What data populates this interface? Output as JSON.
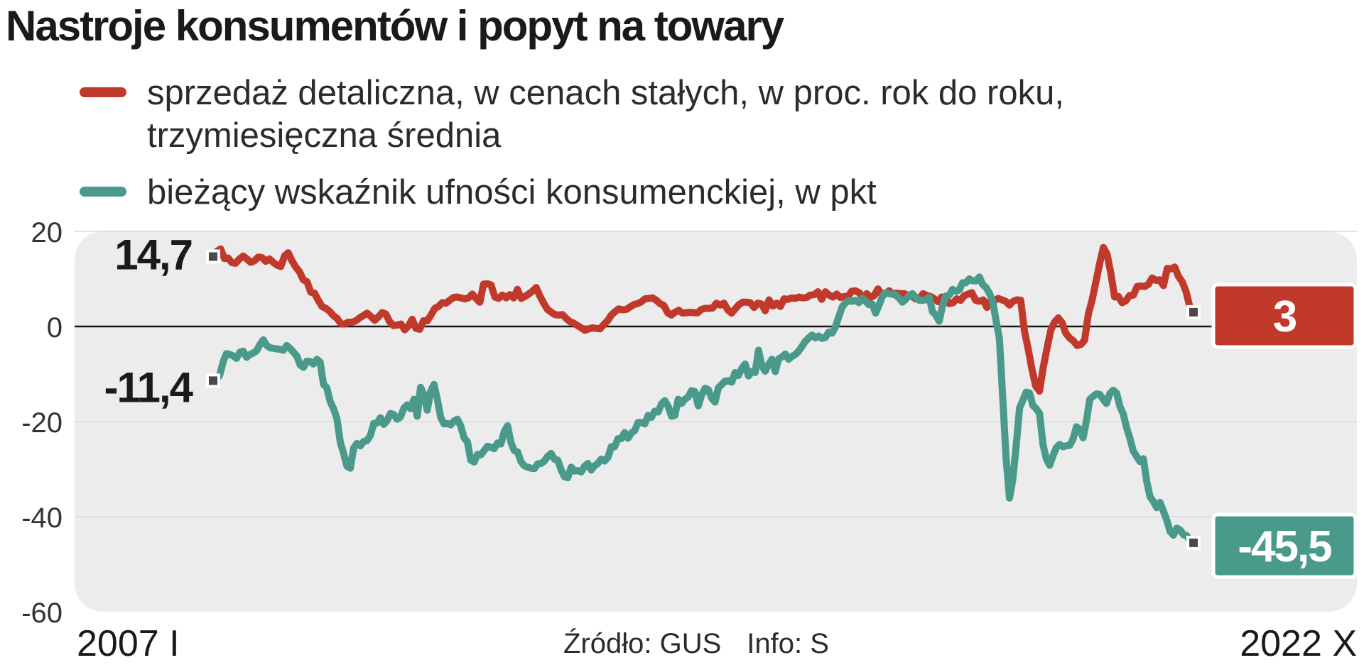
{
  "title": "Nastroje konsumentów i popyt na towary",
  "source": {
    "text": "Źródło: GUS",
    "info": "Info: S"
  },
  "colors": {
    "retail": "#c0392b",
    "confidence": "#4a9a8c",
    "plot_background": "#ececec",
    "text": "#1a1a1a"
  },
  "chart_data": {
    "type": "line",
    "title": "Nastroje konsumentów i popyt na towary",
    "xlabel": "",
    "ylabel": "",
    "x_start_label": "2007 I",
    "x_end_label": "2022 X",
    "ylim": [
      -60,
      20
    ],
    "yticks": [
      20,
      0,
      -20,
      -40,
      -60
    ],
    "grid": true,
    "legend_position": "top-left",
    "series": [
      {
        "id": "retail",
        "name": "sprzedaż detaliczna, w cenach stałych, w proc. rok do roku, trzymiesięczna średnia",
        "color": "#c0392b",
        "start_label": "14,7",
        "end_label": "3",
        "values": [
          14.7,
          15.8,
          16.3,
          14.3,
          14.4,
          13.4,
          13.3,
          14.2,
          14.8,
          14.2,
          13.5,
          13.8,
          14.6,
          14.5,
          13.7,
          14.2,
          13.5,
          12.9,
          12.6,
          14.8,
          15.5,
          13.8,
          12.5,
          11.5,
          9.8,
          9.4,
          7.2,
          7.0,
          5.5,
          4.2,
          3.8,
          3.2,
          2.3,
          1.7,
          0.6,
          0.5,
          0.9,
          0.9,
          1.2,
          1.8,
          2.3,
          2.8,
          2.1,
          1.3,
          2.0,
          2.9,
          2.6,
          1.0,
          0.2,
          0.3,
          0.5,
          -0.7,
          0.1,
          1.5,
          -0.4,
          -0.6,
          1.2,
          1.2,
          2.4,
          3.8,
          4.2,
          5.0,
          4.9,
          5.5,
          6.1,
          6.2,
          6.0,
          5.8,
          6.0,
          6.8,
          5.9,
          5.1,
          8.9,
          9.0,
          8.7,
          6.2,
          5.9,
          6.6,
          6.0,
          6.7,
          6.0,
          7.8,
          5.9,
          6.3,
          6.8,
          7.4,
          8.2,
          6.4,
          4.9,
          3.6,
          3.0,
          2.5,
          2.4,
          2.5,
          1.7,
          1.0,
          0.7,
          0.2,
          -0.3,
          -0.8,
          -0.5,
          -0.3,
          -0.4,
          -0.5,
          0.4,
          1.2,
          2.4,
          3.1,
          3.7,
          3.5,
          3.6,
          4.1,
          4.6,
          4.8,
          5.2,
          5.8,
          5.9,
          6.0,
          5.5,
          4.8,
          4.4,
          2.9,
          2.4,
          3.0,
          3.4,
          2.8,
          2.9,
          3.0,
          2.9,
          2.9,
          3.6,
          3.8,
          3.8,
          3.9,
          4.9,
          4.5,
          4.9,
          3.5,
          2.8,
          3.7,
          4.6,
          5.1,
          5.1,
          5.0,
          4.0,
          4.9,
          4.7,
          3.3,
          5.6,
          4.3,
          4.9,
          4.2,
          5.8,
          5.7,
          6.0,
          5.9,
          6.2,
          6.0,
          6.1,
          6.6,
          6.7,
          7.3,
          5.7,
          7.3,
          6.6,
          6.2,
          6.8,
          6.1,
          6.3,
          6.3,
          7.4,
          7.5,
          7.1,
          6.0,
          6.9,
          6.1,
          6.5,
          7.9,
          6.7,
          6.9,
          7.5,
          6.8,
          7.0,
          6.9,
          6.9,
          6.5,
          6.4,
          5.8,
          5.8,
          6.9,
          6.5,
          6.3,
          5.8,
          5.2,
          6.2,
          6.0,
          4.8,
          5.0,
          5.8,
          5.5,
          6.5,
          6.8,
          7.1,
          5.5,
          5.3,
          5.6,
          4.0,
          5.5,
          5.5,
          5.9,
          5.6,
          5.3,
          4.5,
          5.3,
          5.6,
          5.5,
          -1.0,
          -4.8,
          -9.0,
          -12.5,
          -13.6,
          -8.6,
          -4.6,
          -0.8,
          0.9,
          1.8,
          0.8,
          -1.4,
          -2.4,
          -3.0,
          -4.0,
          -3.8,
          -2.9,
          2.6,
          5.5,
          9.3,
          13.2,
          16.6,
          15.2,
          11.1,
          6.2,
          6.3,
          5.0,
          5.4,
          6.5,
          6.6,
          8.4,
          8.5,
          8.4,
          8.9,
          10.2,
          9.7,
          9.8,
          8.6,
          12.2,
          12.1,
          12.5,
          10.5,
          9.4,
          7.4,
          4.2,
          3.0
        ]
      },
      {
        "id": "confidence",
        "name": "bieżący wskaźnik ufności konsumenckiej, w pkt",
        "color": "#4a9a8c",
        "start_label": "-11,4",
        "end_label": "-45,5",
        "values": [
          -11.4,
          -11.2,
          -10.2,
          -7.4,
          -5.7,
          -5.9,
          -6.2,
          -6.7,
          -5.4,
          -5.2,
          -6.5,
          -5.9,
          -5.6,
          -5.1,
          -3.8,
          -2.8,
          -4.0,
          -4.5,
          -4.6,
          -4.7,
          -4.8,
          -5.0,
          -4.0,
          -4.6,
          -5.4,
          -6.2,
          -8.1,
          -8.6,
          -7.3,
          -7.4,
          -7.9,
          -6.9,
          -7.5,
          -12.2,
          -12.9,
          -15.8,
          -17.3,
          -19.4,
          -24.3,
          -26.7,
          -29.4,
          -29.8,
          -25.6,
          -24.6,
          -25.1,
          -24.2,
          -24.0,
          -22.9,
          -20.4,
          -20.3,
          -19.2,
          -20.6,
          -19.8,
          -18.3,
          -18.5,
          -19.5,
          -19.0,
          -17.2,
          -16.5,
          -17.3,
          -15.3,
          -18.9,
          -12.8,
          -14.3,
          -17.6,
          -13.7,
          -12.2,
          -15.3,
          -19.1,
          -20.5,
          -20.4,
          -20.7,
          -19.9,
          -19.5,
          -20.9,
          -23.4,
          -24.3,
          -28.1,
          -28.5,
          -26.9,
          -27.0,
          -26.1,
          -25.2,
          -25.4,
          -25.7,
          -24.5,
          -24.7,
          -22.1,
          -20.9,
          -24.4,
          -26.1,
          -26.4,
          -28.4,
          -29.3,
          -29.6,
          -29.8,
          -29.9,
          -28.9,
          -28.8,
          -28.3,
          -27.3,
          -26.7,
          -27.9,
          -28.1,
          -30.1,
          -31.6,
          -31.8,
          -29.6,
          -30.4,
          -30.3,
          -30.6,
          -29.4,
          -28.8,
          -30.2,
          -29.3,
          -28.8,
          -27.9,
          -28.3,
          -27.5,
          -25.3,
          -25.3,
          -23.6,
          -23.6,
          -22.3,
          -23.5,
          -22.4,
          -21.9,
          -20.2,
          -20.2,
          -20.5,
          -18.7,
          -19.1,
          -17.8,
          -18.0,
          -16.3,
          -15.6,
          -16.8,
          -18.9,
          -18.7,
          -15.3,
          -16.2,
          -15.3,
          -14.8,
          -13.5,
          -13.7,
          -16.7,
          -14.4,
          -13.0,
          -13.3,
          -15.1,
          -15.9,
          -12.9,
          -12.2,
          -11.5,
          -11.4,
          -11.7,
          -9.7,
          -10.3,
          -8.8,
          -7.9,
          -10.4,
          -9.5,
          -9.7,
          -5.0,
          -8.3,
          -9.4,
          -8.0,
          -6.9,
          -9.5,
          -6.8,
          -6.4,
          -5.8,
          -6.9,
          -6.3,
          -5.9,
          -5.2,
          -4.2,
          -3.1,
          -2.4,
          -1.8,
          -2.4,
          -2.0,
          -2.5,
          -2.3,
          -1.2,
          -1.4,
          -0.1,
          2.1,
          4.1,
          5.0,
          5.4,
          5.3,
          5.5,
          5.0,
          6.0,
          5.3,
          4.6,
          4.7,
          2.8,
          4.5,
          6.3,
          7.1,
          6.9,
          6.8,
          6.6,
          6.0,
          5.1,
          5.7,
          6.5,
          6.9,
          6.1,
          5.5,
          5.5,
          5.6,
          6.2,
          3.1,
          2.4,
          1.1,
          4.4,
          6.4,
          6.6,
          7.8,
          7.4,
          7.7,
          9.2,
          9.2,
          10.0,
          9.6,
          9.6,
          10.4,
          8.8,
          8.2,
          7.0,
          5.3,
          1.2,
          -2.5,
          -15.1,
          -27.7,
          -36.1,
          -32.1,
          -25.1,
          -17.2,
          -15.5,
          -13.8,
          -14.0,
          -16.6,
          -17.3,
          -18.3,
          -24.8,
          -27.8,
          -29.2,
          -27.2,
          -25.5,
          -24.8,
          -25.3,
          -25.1,
          -25.0,
          -23.7,
          -21.1,
          -21.6,
          -23.4,
          -19.8,
          -15.3,
          -14.7,
          -14.2,
          -14.3,
          -15.3,
          -16.2,
          -14.1,
          -13.4,
          -14.0,
          -16.8,
          -18.4,
          -21.3,
          -23.5,
          -26.2,
          -27.3,
          -28.4,
          -27.8,
          -32.5,
          -35.8,
          -36.8,
          -38.1,
          -37.0,
          -38.8,
          -40.7,
          -43.1,
          -43.9,
          -42.4,
          -42.8,
          -43.8,
          -44.0,
          -45.2,
          -45.5
        ]
      }
    ]
  }
}
